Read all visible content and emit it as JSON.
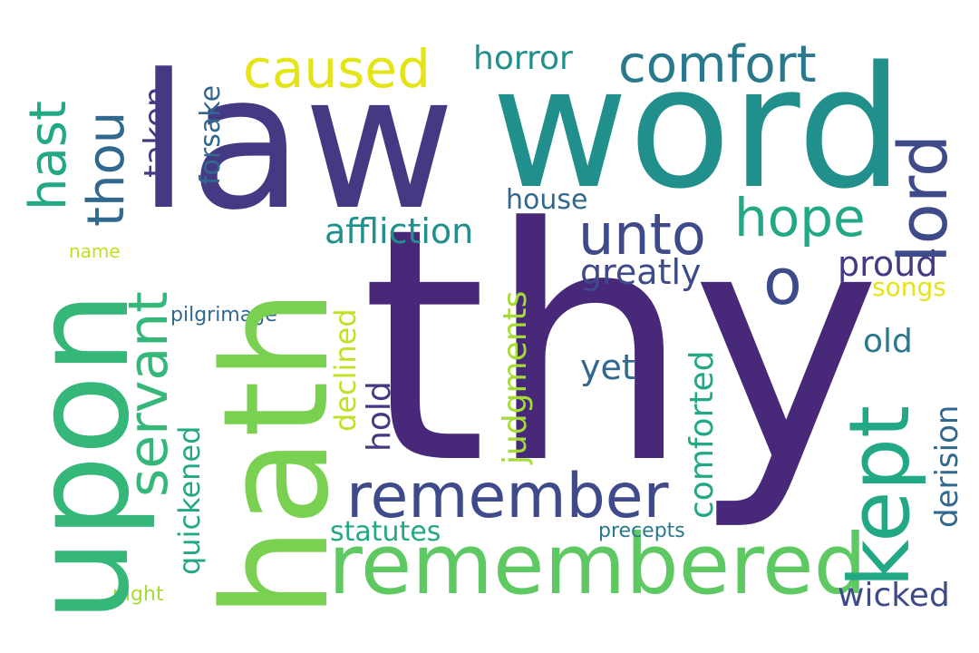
{
  "words": {
    "thy": "thy",
    "law": "law",
    "word": "word",
    "hath": "hath",
    "upon": "upon",
    "remembered": "remembered",
    "kept": "kept",
    "lord": "lord",
    "unto": "unto",
    "remember": "remember",
    "servant": "servant",
    "hope": "hope",
    "comfort": "comfort",
    "caused": "caused",
    "thou": "thou",
    "hast": "hast",
    "o": "o",
    "affliction": "affliction",
    "greatly": "greatly",
    "horror": "horror",
    "taken": "taken",
    "forsake": "forsake",
    "house": "house",
    "proud": "proud",
    "songs": "songs",
    "old": "old",
    "yet": "yet",
    "judgments": "judgments",
    "declined": "declined",
    "hold": "hold",
    "quickened": "quickened",
    "comforted": "comforted",
    "derision": "derision",
    "statutes": "statutes",
    "precepts": "precepts",
    "wicked": "wicked",
    "night": "night",
    "name": "name",
    "pilgrimage": "pilgrimage"
  },
  "palette": {
    "background": "#ffffff",
    "deep_purple": "#482878",
    "indigo": "#443983",
    "slate_blue": "#3e4a89",
    "steel_blue": "#31688e",
    "teal_blue": "#2a788e",
    "teal": "#21908d",
    "sea_green": "#22a884",
    "emerald": "#35b779",
    "green": "#5ec962",
    "lime": "#7ad151",
    "chartreuse": "#a5db36",
    "yellow_green": "#c2df23",
    "yellow": "#e4e419"
  }
}
